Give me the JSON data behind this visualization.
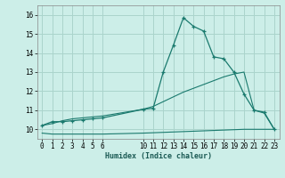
{
  "xlabel": "Humidex (Indice chaleur)",
  "bg_color": "#cceee8",
  "grid_color": "#aad4cc",
  "line_color": "#1a7a6e",
  "line1_x": [
    0,
    1,
    2,
    3,
    4,
    5,
    6,
    10,
    11,
    12,
    13,
    14,
    15,
    16,
    17,
    18,
    19,
    20,
    21,
    22,
    23
  ],
  "line1_y": [
    10.2,
    10.4,
    10.4,
    10.45,
    10.5,
    10.55,
    10.6,
    11.05,
    11.1,
    13.0,
    14.4,
    15.85,
    15.4,
    15.15,
    13.8,
    13.7,
    13.0,
    11.85,
    11.0,
    10.9,
    10.0
  ],
  "line2_x": [
    0,
    1,
    2,
    3,
    4,
    5,
    6,
    10,
    11,
    12,
    13,
    14,
    15,
    16,
    17,
    18,
    19,
    20,
    21,
    22,
    23
  ],
  "line2_y": [
    10.2,
    10.3,
    10.45,
    10.55,
    10.6,
    10.65,
    10.7,
    11.05,
    11.2,
    11.45,
    11.7,
    11.95,
    12.15,
    12.35,
    12.55,
    12.75,
    12.9,
    13.0,
    11.0,
    10.85,
    10.0
  ],
  "line3_x": [
    0,
    1,
    2,
    3,
    4,
    5,
    6,
    10,
    11,
    12,
    13,
    14,
    15,
    16,
    17,
    18,
    19,
    20,
    21,
    22,
    23
  ],
  "line3_y": [
    9.8,
    9.75,
    9.75,
    9.75,
    9.75,
    9.75,
    9.75,
    9.8,
    9.82,
    9.84,
    9.86,
    9.88,
    9.9,
    9.92,
    9.94,
    9.96,
    9.98,
    10.0,
    10.0,
    10.0,
    10.0
  ],
  "ylim": [
    9.5,
    16.5
  ],
  "xlim": [
    -0.5,
    23.5
  ],
  "yticks": [
    10,
    11,
    12,
    13,
    14,
    15,
    16
  ],
  "xticks": [
    0,
    1,
    2,
    3,
    4,
    5,
    6,
    10,
    11,
    12,
    13,
    14,
    15,
    16,
    17,
    18,
    19,
    20,
    21,
    22,
    23
  ]
}
